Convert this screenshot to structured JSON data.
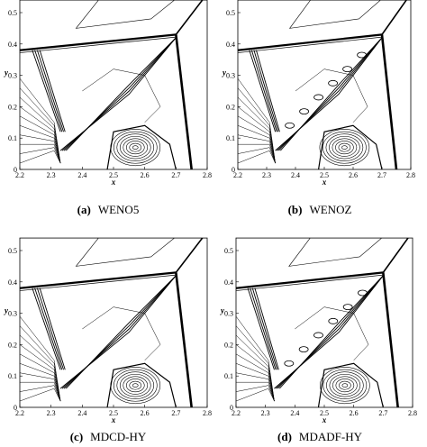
{
  "axes": {
    "x_label": "x",
    "y_label": "y",
    "xticks": [
      "2.2",
      "2.3",
      "2.4",
      "2.5",
      "2.6",
      "2.7",
      "2.8"
    ],
    "yticks": [
      "0",
      "0.1",
      "0.2",
      "0.3",
      "0.4",
      "0.5"
    ]
  },
  "panels": [
    {
      "tag": "(a)",
      "caption": "WENO5"
    },
    {
      "tag": "(b)",
      "caption": "WENOZ"
    },
    {
      "tag": "(c)",
      "caption": "MDCD-HY"
    },
    {
      "tag": "(d)",
      "caption": "MDADF-HY"
    }
  ]
}
